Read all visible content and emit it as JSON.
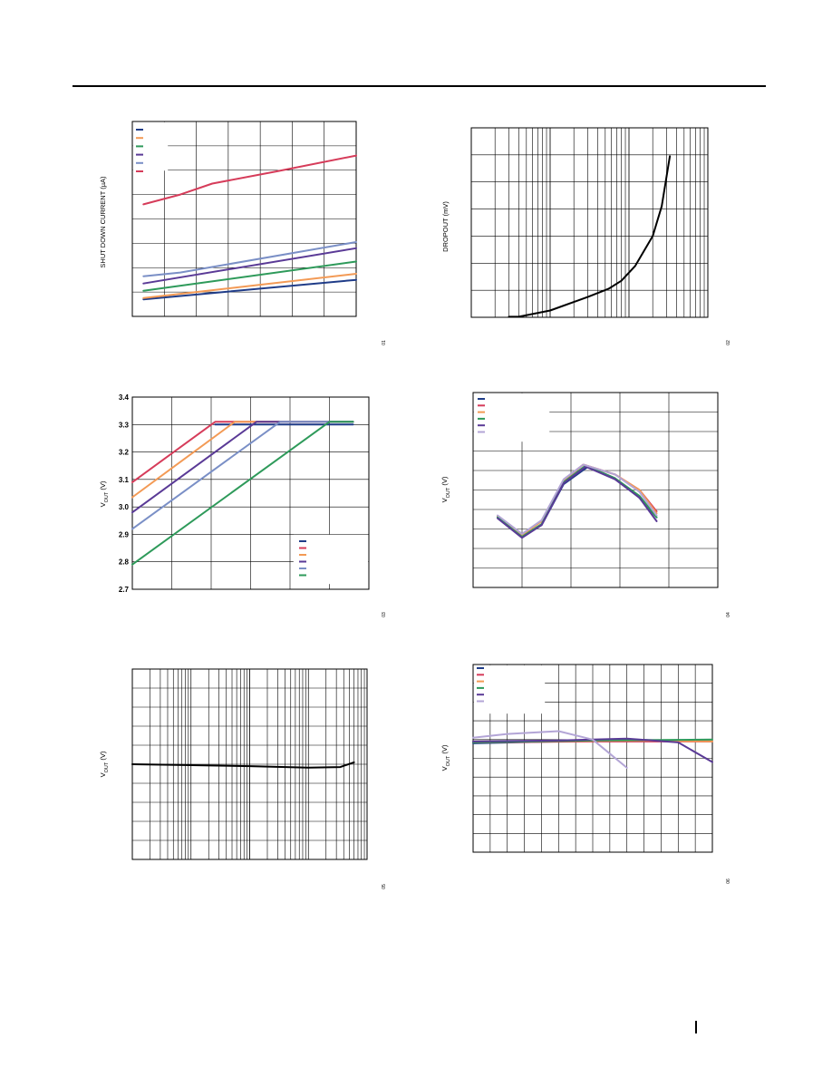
{
  "chart_data": [
    {
      "type": "line",
      "ylabel": "SHUT DOWN CURRENT (µA)",
      "tag": "01",
      "xlim": [
        0,
        7
      ],
      "ylim": [
        0,
        8
      ],
      "grid": true,
      "legend_placement": "top-left",
      "legend_entries": 6,
      "series": [
        {
          "color": "#1f3c88",
          "points": [
            [
              0.35,
              0.7
            ],
            [
              7,
              1.5
            ]
          ]
        },
        {
          "color": "#f39a55",
          "points": [
            [
              0.35,
              0.75
            ],
            [
              7,
              1.75
            ]
          ]
        },
        {
          "color": "#2e9a5a",
          "points": [
            [
              0.35,
              1.05
            ],
            [
              7,
              2.25
            ]
          ]
        },
        {
          "color": "#5a3a96",
          "points": [
            [
              0.35,
              1.35
            ],
            [
              7,
              2.8
            ]
          ]
        },
        {
          "color": "#7a8fc6",
          "points": [
            [
              0.35,
              1.65
            ],
            [
              1.5,
              1.8
            ],
            [
              7,
              3.05
            ]
          ]
        },
        {
          "color": "#d63c5a",
          "points": [
            [
              0.35,
              4.6
            ],
            [
              1.5,
              5.0
            ],
            [
              2.5,
              5.45
            ],
            [
              4.5,
              5.95
            ],
            [
              7,
              6.6
            ]
          ]
        }
      ]
    },
    {
      "type": "line",
      "ylabel": "DROPOUT (mV)",
      "tag": "02",
      "xscale": "log",
      "xlim": [
        1,
        1000
      ],
      "ylim": [
        0,
        7
      ],
      "grid": true,
      "series": [
        {
          "color": "#000000",
          "points": [
            [
              3,
              0.02
            ],
            [
              4,
              0.02
            ],
            [
              10,
              0.25
            ],
            [
              30,
              0.75
            ],
            [
              55,
              1.05
            ],
            [
              80,
              1.35
            ],
            [
              120,
              1.9
            ],
            [
              200,
              3.0
            ],
            [
              260,
              4.1
            ],
            [
              330,
              5.95
            ]
          ]
        }
      ]
    },
    {
      "type": "line",
      "ylabel": "V_OUT (V)",
      "tag": "03",
      "xlim": [
        0,
        6
      ],
      "ylim": [
        2.7,
        3.4
      ],
      "yticks": [
        "3.4",
        "3.3",
        "3.2",
        "3.1",
        "3.0",
        "2.9",
        "2.8",
        "2.7"
      ],
      "grid": true,
      "legend_placement": "bottom-right",
      "legend_entries": 6,
      "series": [
        {
          "color": "#1f3c88",
          "points": [
            [
              2.1,
              3.3
            ],
            [
              5.6,
              3.3
            ]
          ]
        },
        {
          "color": "#d63c5a",
          "points": [
            [
              0,
              3.09
            ],
            [
              2.1,
              3.31
            ],
            [
              5.6,
              3.31
            ]
          ]
        },
        {
          "color": "#f39a55",
          "points": [
            [
              0,
              3.035
            ],
            [
              2.6,
              3.31
            ],
            [
              5.6,
              3.31
            ]
          ]
        },
        {
          "color": "#5a3a96",
          "points": [
            [
              0,
              2.98
            ],
            [
              3.15,
              3.31
            ],
            [
              5.6,
              3.31
            ]
          ]
        },
        {
          "color": "#7a8fc6",
          "points": [
            [
              0,
              2.92
            ],
            [
              3.75,
              3.31
            ],
            [
              5.6,
              3.31
            ]
          ]
        },
        {
          "color": "#2e9a5a",
          "points": [
            [
              0,
              2.79
            ],
            [
              5,
              3.31
            ],
            [
              5.6,
              3.31
            ]
          ]
        }
      ]
    },
    {
      "type": "line",
      "ylabel": "V_OUT (V)",
      "tag": "04",
      "xlim": [
        0,
        100
      ],
      "ylim": [
        0,
        10
      ],
      "grid": true,
      "legend_placement": "top-left",
      "legend_entries": 6,
      "series": [
        {
          "color": "#1f3c88",
          "points": [
            [
              10,
              3.6
            ],
            [
              20,
              2.6
            ],
            [
              28,
              3.2
            ],
            [
              37,
              5.3
            ],
            [
              47,
              6.2
            ],
            [
              58,
              5.6
            ],
            [
              68,
              4.6
            ],
            [
              75,
              3.6
            ]
          ]
        },
        {
          "color": "#d63c5a",
          "points": [
            [
              10,
              3.65
            ],
            [
              20,
              2.7
            ],
            [
              28,
              3.4
            ],
            [
              37,
              5.5
            ],
            [
              45,
              6.3
            ],
            [
              58,
              5.8
            ],
            [
              68,
              5.0
            ],
            [
              75,
              3.9
            ]
          ]
        },
        {
          "color": "#f39a55",
          "points": [
            [
              10,
              3.65
            ],
            [
              20,
              2.7
            ],
            [
              28,
              3.4
            ],
            [
              37,
              5.5
            ],
            [
              45,
              6.3
            ],
            [
              58,
              5.8
            ],
            [
              68,
              5.0
            ],
            [
              75,
              3.8
            ]
          ]
        },
        {
          "color": "#2e9a5a",
          "points": [
            [
              10,
              3.6
            ],
            [
              20,
              2.6
            ],
            [
              28,
              3.25
            ],
            [
              37,
              5.4
            ],
            [
              46,
              6.25
            ],
            [
              58,
              5.6
            ],
            [
              68,
              4.7
            ],
            [
              75,
              3.6
            ]
          ]
        },
        {
          "color": "#5a3a96",
          "points": [
            [
              10,
              3.55
            ],
            [
              20,
              2.55
            ],
            [
              28,
              3.2
            ],
            [
              37,
              5.35
            ],
            [
              46,
              6.2
            ],
            [
              58,
              5.55
            ],
            [
              68,
              4.6
            ],
            [
              75,
              3.4
            ]
          ]
        },
        {
          "color": "#b3a5d6",
          "points": [
            [
              10,
              3.7
            ],
            [
              20,
              2.75
            ],
            [
              28,
              3.45
            ],
            [
              37,
              5.55
            ],
            [
              45,
              6.3
            ],
            [
              58,
              5.8
            ],
            [
              68,
              4.9
            ],
            [
              75,
              3.7
            ]
          ]
        }
      ]
    },
    {
      "type": "line",
      "ylabel": "V_OUT (V)",
      "tag": "05",
      "xscale": "log",
      "xlim": [
        1,
        10000
      ],
      "ylim": [
        0,
        10
      ],
      "grid": true,
      "series": [
        {
          "color": "#000000",
          "points": [
            [
              1,
              5.0
            ],
            [
              10,
              4.95
            ],
            [
              100,
              4.9
            ],
            [
              1000,
              4.82
            ],
            [
              3500,
              4.85
            ],
            [
              6000,
              5.1
            ]
          ]
        }
      ]
    },
    {
      "type": "line",
      "ylabel": "V_OUT (V)",
      "tag": "06",
      "xlim": [
        0,
        14
      ],
      "ylim": [
        0,
        10
      ],
      "grid": true,
      "legend_placement": "top-left",
      "legend_entries": 6,
      "series": [
        {
          "color": "#1f3c88",
          "points": [
            [
              0,
              5.8
            ],
            [
              5,
              5.9
            ],
            [
              9,
              6.0
            ],
            [
              11,
              5.95
            ],
            [
              14,
              5.9
            ]
          ]
        },
        {
          "color": "#d63c5a",
          "points": [
            [
              0,
              5.85
            ],
            [
              7,
              5.9
            ],
            [
              14,
              5.9
            ]
          ]
        },
        {
          "color": "#f39a55",
          "points": [
            [
              0,
              5.9
            ],
            [
              10,
              5.95
            ],
            [
              14,
              5.9
            ]
          ]
        },
        {
          "color": "#2e9a5a",
          "points": [
            [
              0,
              5.85
            ],
            [
              7,
              5.95
            ],
            [
              14,
              6.0
            ]
          ]
        },
        {
          "color": "#5a3a96",
          "points": [
            [
              0,
              5.9
            ],
            [
              5,
              5.95
            ],
            [
              9,
              6.05
            ],
            [
              12,
              5.85
            ],
            [
              14,
              4.8
            ]
          ]
        },
        {
          "color": "#b3a5d6",
          "points": [
            [
              0,
              6.1
            ],
            [
              2,
              6.3
            ],
            [
              5,
              6.45
            ],
            [
              7,
              6.0
            ],
            [
              9,
              4.5
            ]
          ]
        }
      ]
    }
  ]
}
